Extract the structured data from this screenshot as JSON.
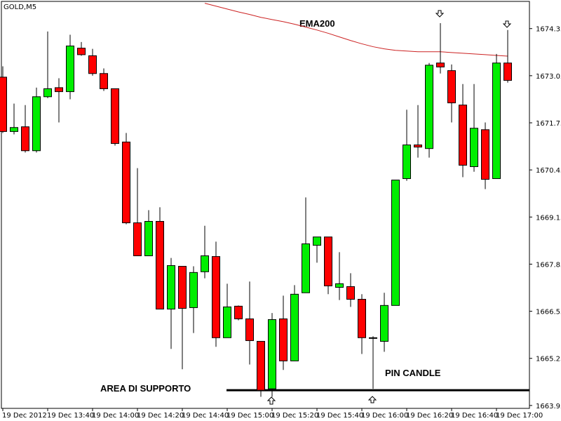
{
  "chart_data": {
    "type": "candlestick",
    "title": "GOLD,M5",
    "categories": [
      "19 Dec 2012",
      null,
      null,
      null,
      "19 Dec 13:40",
      null,
      null,
      null,
      "19 Dec 14:00",
      null,
      null,
      null,
      "19 Dec 14:20",
      null,
      null,
      null,
      "19 Dec 14:40",
      null,
      null,
      null,
      "19 Dec 15:00",
      null,
      null,
      null,
      "19 Dec 15:20",
      null,
      null,
      null,
      "19 Dec 15:40",
      null,
      null,
      null,
      "19 Dec 16:00",
      null,
      null,
      null,
      "19 Dec 16:20",
      null,
      null,
      null,
      "19 Dec 16:40",
      null,
      null,
      null,
      "19 Dec 17:00",
      null
    ],
    "open": [
      1673.01,
      1671.51,
      1671.64,
      1670.98,
      1672.47,
      1672.72,
      1672.61,
      1673.81,
      1673.6,
      1673.11,
      1672.69,
      1671.22,
      1668.99,
      1668.08,
      1669.03,
      1666.61,
      1667.79,
      1666.65,
      1667.64,
      1668.06,
      1665.82,
      1666.69,
      1666.34,
      1665.72,
      1664.41,
      1666.34,
      1665.18,
      1667.06,
      1668.37,
      1668.6,
      1667.21,
      1667.23,
      1666.88,
      1665.82,
      1665.72,
      1666.71,
      1670.21,
      1671.14,
      1671.04,
      1673.4,
      1673.19,
      1672.24,
      1670.54,
      1671.56,
      1670.21,
      1673.4
    ],
    "high": [
      1673.31,
      1672.28,
      1672.24,
      1672.72,
      1674.27,
      1672.98,
      1674.18,
      1673.98,
      1673.79,
      1673.25,
      1672.69,
      1671.47,
      1670.5,
      1669.34,
      1669.42,
      1668.02,
      1667.79,
      1667.79,
      1668.91,
      1668.47,
      1667.31,
      1666.71,
      1667.37,
      1665.72,
      1666.5,
      1666.98,
      1667.27,
      1669.69,
      1668.6,
      1668.6,
      1668.18,
      1667.6,
      1667.02,
      1665.86,
      1667.06,
      1670.17,
      1672.11,
      1672.24,
      1673.4,
      1674.5,
      1673.36,
      1672.82,
      1672.82,
      1671.76,
      1673.65,
      1674.31
    ],
    "low": [
      1671.47,
      1671.43,
      1670.93,
      1670.93,
      1672.43,
      1671.76,
      1672.4,
      1673.6,
      1673.05,
      1672.63,
      1671.12,
      1668.95,
      1668.08,
      1668.08,
      1666.61,
      1665.51,
      1664.95,
      1665.95,
      1667.46,
      1665.57,
      1665.82,
      1666.3,
      1665.08,
      1664.19,
      1664.19,
      1664.93,
      1665.18,
      1667.06,
      1667.89,
      1667.02,
      1666.86,
      1666.67,
      1665.37,
      1664.41,
      1665.43,
      1666.71,
      1670.15,
      1670.79,
      1670.79,
      1673.11,
      1671.76,
      1670.25,
      1670.4,
      1669.92,
      1670.21,
      1672.86
    ],
    "close": [
      1671.51,
      1671.62,
      1670.98,
      1672.47,
      1672.69,
      1672.61,
      1673.87,
      1673.63,
      1673.11,
      1672.69,
      1671.18,
      1668.99,
      1668.08,
      1669.03,
      1666.61,
      1667.81,
      1666.63,
      1667.62,
      1668.08,
      1665.82,
      1666.67,
      1666.34,
      1665.74,
      1664.37,
      1666.32,
      1665.18,
      1667.02,
      1668.41,
      1668.6,
      1667.25,
      1667.31,
      1666.88,
      1665.82,
      1665.82,
      1666.71,
      1670.17,
      1671.14,
      1671.08,
      1673.34,
      1673.29,
      1672.3,
      1670.58,
      1671.6,
      1670.19,
      1673.4,
      1672.92
    ],
    "up_color": "#00ee00",
    "down_color": "#ff0000",
    "ema": {
      "name": "EMA200",
      "color": "#cc2222",
      "values": [
        null,
        null,
        null,
        null,
        null,
        null,
        null,
        null,
        null,
        null,
        null,
        null,
        null,
        null,
        null,
        null,
        null,
        null,
        1675.05,
        1674.97,
        1674.89,
        1674.81,
        1674.74,
        1674.66,
        1674.6,
        1674.54,
        1674.47,
        1674.39,
        1674.31,
        1674.22,
        1674.12,
        1674.02,
        1673.93,
        1673.85,
        1673.79,
        1673.75,
        1673.73,
        1673.71,
        1673.71,
        1673.71,
        1673.69,
        1673.67,
        1673.65,
        1673.63,
        1673.61,
        1673.59
      ]
    },
    "support_level": 1664.37,
    "annotations": [
      "AREA DI SUPPORTO",
      "PIN CANDLE"
    ],
    "ylim": [
      1663.87,
      1675.1
    ],
    "yticks": [
      1663.95,
      1665.25,
      1666.55,
      1667.85,
      1669.15,
      1670.45,
      1671.75,
      1673.05,
      1674.35
    ]
  }
}
